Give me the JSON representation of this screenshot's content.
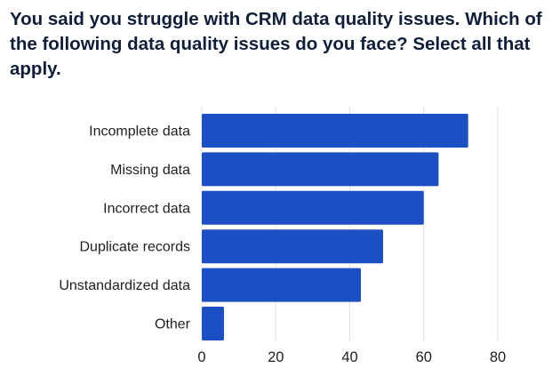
{
  "title": "You said you struggle with CRM data quality issues. Which of the following data quality issues do you face? Select all that apply.",
  "colors": {
    "bar": "#1c4fc4",
    "grid": "#e3e3e3",
    "text": "#1f1f1f",
    "title": "#0f1f3a"
  },
  "chart_data": {
    "type": "bar",
    "orientation": "horizontal",
    "categories": [
      "Incomplete data",
      "Missing data",
      "Incorrect data",
      "Duplicate records",
      "Unstandardized data",
      "Other"
    ],
    "values": [
      72,
      64,
      60,
      49,
      43,
      6
    ],
    "xlim": [
      0,
      80
    ],
    "xticks": [
      0,
      20,
      40,
      60,
      80
    ],
    "grid": true,
    "legend": "none"
  }
}
